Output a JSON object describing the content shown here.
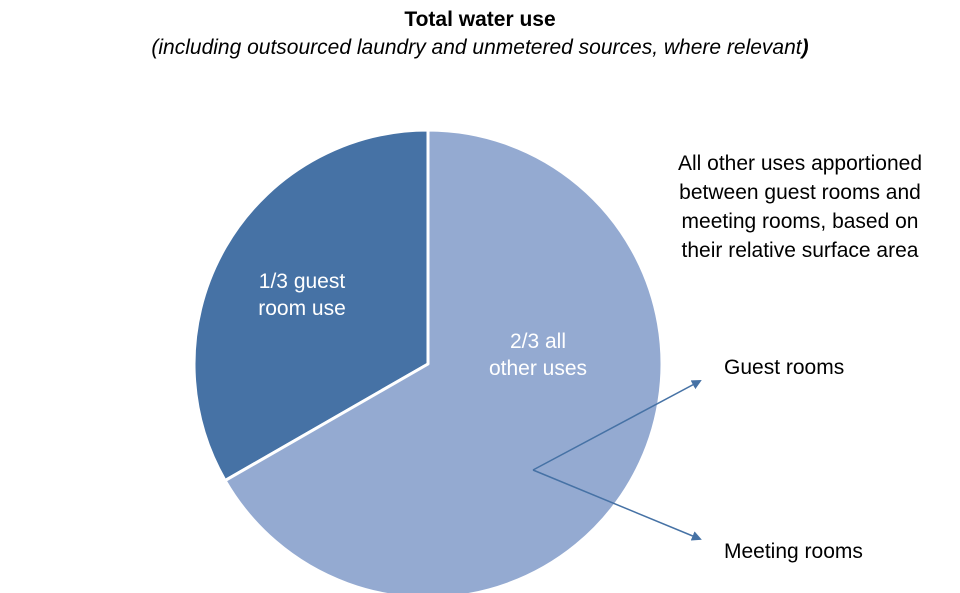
{
  "chart_data": {
    "type": "pie",
    "title": "Total water use",
    "subtitle": "(including outsourced laundry and unmetered sources, where relevant",
    "subtitle_closing": ")",
    "slices": [
      {
        "label": "1/3 guest room use",
        "label_lines": [
          "1/3 guest",
          "room use"
        ],
        "value": 33.3,
        "color": "#4672a5"
      },
      {
        "label": "2/3 all other uses",
        "label_lines": [
          "2/3 all",
          "other uses"
        ],
        "value": 66.7,
        "color": "#94aad1"
      }
    ],
    "slice_border": "#ffffff",
    "slice_label_color": "#ffffff",
    "annotations": {
      "note_lines": [
        "All other uses apportioned",
        "between guest rooms and",
        "meeting rooms, based on",
        "their relative surface area"
      ],
      "arrow_color": "#4672a5",
      "targets": [
        "Guest rooms",
        "Meeting rooms"
      ]
    }
  }
}
